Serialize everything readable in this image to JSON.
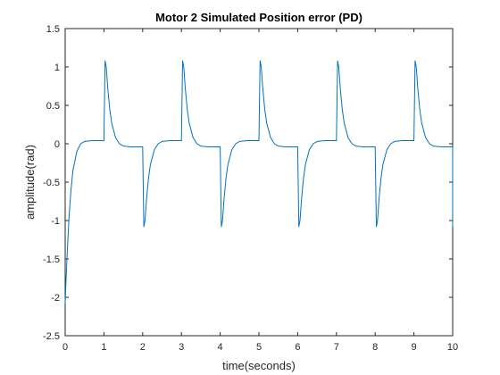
{
  "chart_data": {
    "type": "line",
    "title": "Motor 2 Simulated Position error (PD)",
    "xlabel": "time(seconds)",
    "ylabel": "amplitude(rad)",
    "xlim": [
      0,
      10
    ],
    "ylim": [
      -2.5,
      1.5
    ],
    "xticks": [
      0,
      1,
      2,
      3,
      4,
      5,
      6,
      7,
      8,
      9,
      10
    ],
    "yticks": [
      -2.5,
      -2,
      -1.5,
      -1,
      -0.5,
      0,
      0.5,
      1,
      1.5
    ],
    "grid": false,
    "box": true,
    "line_color": "#0072BD",
    "series": [
      {
        "x": [
          0,
          0.02,
          0.05,
          0.1,
          0.15,
          0.2,
          0.3,
          0.4,
          0.5,
          0.7,
          1.0,
          1.0,
          1.03,
          1.06,
          1.1,
          1.15,
          1.2,
          1.3,
          1.4,
          1.5,
          1.7,
          2.0,
          2.0,
          2.03,
          2.06,
          2.1,
          2.15,
          2.2,
          2.3,
          2.4,
          2.5,
          2.7,
          3.0,
          3.0,
          3.03,
          3.06,
          3.1,
          3.15,
          3.2,
          3.3,
          3.4,
          3.5,
          3.7,
          4.0,
          4.0,
          4.03,
          4.06,
          4.1,
          4.15,
          4.2,
          4.3,
          4.4,
          4.5,
          4.7,
          5.0,
          5.0,
          5.03,
          5.06,
          5.1,
          5.15,
          5.2,
          5.3,
          5.4,
          5.5,
          5.7,
          6.0,
          6.0,
          6.03,
          6.06,
          6.1,
          6.15,
          6.2,
          6.3,
          6.4,
          6.5,
          6.7,
          7.0,
          7.0,
          7.03,
          7.06,
          7.1,
          7.15,
          7.2,
          7.3,
          7.4,
          7.5,
          7.7,
          8.0,
          8.0,
          8.03,
          8.06,
          8.1,
          8.15,
          8.2,
          8.3,
          8.4,
          8.5,
          8.7,
          9.0,
          9.0,
          9.03,
          9.06,
          9.1,
          9.15,
          9.2,
          9.3,
          9.4,
          9.5,
          9.7,
          10.0,
          10.0
        ],
        "y": [
          -2.08,
          -1.8,
          -1.45,
          -0.95,
          -0.6,
          -0.35,
          -0.1,
          0.0,
          0.03,
          0.04,
          0.04,
          0.04,
          1.08,
          1.0,
          0.72,
          0.45,
          0.27,
          0.08,
          0.0,
          -0.03,
          -0.04,
          -0.04,
          -0.04,
          -1.08,
          -1.0,
          -0.72,
          -0.45,
          -0.27,
          -0.08,
          0.0,
          0.03,
          0.04,
          0.04,
          0.04,
          1.08,
          1.0,
          0.72,
          0.45,
          0.27,
          0.08,
          0.0,
          -0.03,
          -0.04,
          -0.04,
          -0.04,
          -1.08,
          -1.0,
          -0.72,
          -0.45,
          -0.27,
          -0.08,
          0.0,
          0.03,
          0.04,
          0.04,
          0.04,
          1.08,
          1.0,
          0.72,
          0.45,
          0.27,
          0.08,
          0.0,
          -0.03,
          -0.04,
          -0.04,
          -0.04,
          -1.08,
          -1.0,
          -0.72,
          -0.45,
          -0.27,
          -0.08,
          0.0,
          0.03,
          0.04,
          0.04,
          0.04,
          1.08,
          1.0,
          0.72,
          0.45,
          0.27,
          0.08,
          0.0,
          -0.03,
          -0.04,
          -0.04,
          -0.04,
          -1.08,
          -1.0,
          -0.72,
          -0.45,
          -0.27,
          -0.08,
          0.0,
          0.03,
          0.04,
          0.04,
          0.04,
          1.08,
          1.0,
          0.72,
          0.45,
          0.27,
          0.08,
          0.0,
          -0.03,
          -0.04,
          -0.04,
          -1.08
        ]
      }
    ]
  }
}
